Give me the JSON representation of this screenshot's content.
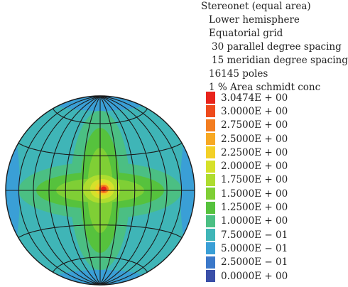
{
  "info": {
    "title": "Stereonet (equal area)",
    "hemisphere": "Lower hemisphere",
    "grid": "Equatorial grid",
    "parallel_spacing": "30 parallel degree spacing",
    "meridian_spacing": "15 meridian degree spacing",
    "poles": "16145 poles",
    "method": "1 % Area schmidt conc"
  },
  "legend": [
    {
      "label": "3.0474E + 00",
      "color": "#e8231b"
    },
    {
      "label": "3.0000E + 00",
      "color": "#ee4a1c"
    },
    {
      "label": "2.7500E + 00",
      "color": "#f37d20"
    },
    {
      "label": "2.5000E + 00",
      "color": "#f7a823"
    },
    {
      "label": "2.2500E + 00",
      "color": "#f3d027"
    },
    {
      "label": "2.0000E + 00",
      "color": "#d6e12a"
    },
    {
      "label": "1.7500E + 00",
      "color": "#aedc2f"
    },
    {
      "label": "1.5000E + 00",
      "color": "#7fcf35"
    },
    {
      "label": "1.2500E + 00",
      "color": "#56c23d"
    },
    {
      "label": "1.0000E + 00",
      "color": "#4bbf83"
    },
    {
      "label": "7.5000E − 01",
      "color": "#3fb5b7"
    },
    {
      "label": "5.0000E − 01",
      "color": "#3a9fd6"
    },
    {
      "label": "2.5000E − 01",
      "color": "#3b78c9"
    },
    {
      "label": "0.0000E + 00",
      "color": "#3a4fa8"
    }
  ]
}
